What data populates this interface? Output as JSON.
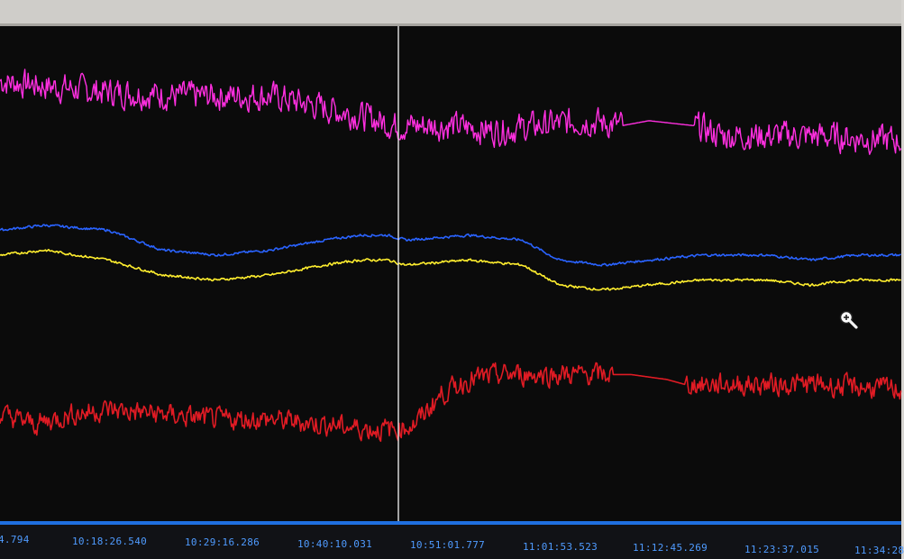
{
  "chart_data": {
    "type": "line",
    "title": "",
    "xlabel": "",
    "ylabel": "",
    "grid": false,
    "legend": "none",
    "x_tick_labels": [
      "4.794",
      "10:18:26.540",
      "10:29:16.286",
      "10:40:10.031",
      "10:51:01.777",
      "11:01:53.523",
      "11:12:45.269",
      "11:23:37.015",
      "11:34:28"
    ],
    "x_range": [
      0,
      100
    ],
    "ylim": [
      0,
      100
    ],
    "series": [
      {
        "color": "#ff2fe0",
        "noise": 4,
        "points": [
          [
            0,
            89
          ],
          [
            10,
            87
          ],
          [
            20,
            86
          ],
          [
            30,
            86
          ],
          [
            35,
            84
          ],
          [
            40,
            82
          ],
          [
            44,
            80
          ],
          [
            46,
            80
          ],
          [
            50,
            80
          ],
          [
            55,
            79
          ],
          [
            60,
            80
          ],
          [
            65,
            81
          ],
          [
            69,
            80
          ],
          [
            72,
            81
          ],
          [
            77,
            80
          ],
          [
            80,
            78
          ],
          [
            90,
            78
          ],
          [
            100,
            77
          ]
        ],
        "flat": [
          [
            69,
            77
          ]
        ]
      },
      {
        "color": "#2a63ff",
        "noise": 0.35,
        "points": [
          [
            0,
            59
          ],
          [
            5,
            60
          ],
          [
            12,
            59
          ],
          [
            18,
            55
          ],
          [
            24,
            54
          ],
          [
            30,
            55
          ],
          [
            36,
            57
          ],
          [
            40,
            58
          ],
          [
            43,
            58
          ],
          [
            45,
            57
          ],
          [
            52,
            58
          ],
          [
            58,
            57
          ],
          [
            62,
            53
          ],
          [
            67,
            52
          ],
          [
            72,
            53
          ],
          [
            78,
            54
          ],
          [
            85,
            54
          ],
          [
            90,
            53
          ],
          [
            95,
            54
          ],
          [
            100,
            54
          ]
        ],
        "flat": []
      },
      {
        "color": "#ffee2e",
        "noise": 0.35,
        "points": [
          [
            0,
            54
          ],
          [
            5,
            55
          ],
          [
            12,
            53
          ],
          [
            18,
            50
          ],
          [
            24,
            49
          ],
          [
            30,
            50
          ],
          [
            36,
            52
          ],
          [
            40,
            53
          ],
          [
            43,
            53
          ],
          [
            45,
            52
          ],
          [
            52,
            53
          ],
          [
            58,
            52
          ],
          [
            62,
            48
          ],
          [
            67,
            47
          ],
          [
            72,
            48
          ],
          [
            78,
            49
          ],
          [
            85,
            49
          ],
          [
            90,
            48
          ],
          [
            95,
            49
          ],
          [
            100,
            49
          ]
        ],
        "flat": []
      },
      {
        "color": "#e01b24",
        "noise": 3,
        "points": [
          [
            0,
            22
          ],
          [
            4,
            20
          ],
          [
            8,
            22
          ],
          [
            12,
            23
          ],
          [
            18,
            22
          ],
          [
            24,
            21
          ],
          [
            30,
            21
          ],
          [
            36,
            20
          ],
          [
            41,
            19
          ],
          [
            44,
            19
          ],
          [
            46,
            20
          ],
          [
            49,
            26
          ],
          [
            52,
            29
          ],
          [
            56,
            30
          ],
          [
            62,
            30
          ],
          [
            66,
            30
          ],
          [
            68,
            30
          ],
          [
            70,
            30
          ],
          [
            74,
            29
          ],
          [
            76,
            28
          ],
          [
            80,
            28
          ],
          [
            90,
            28
          ],
          [
            100,
            27
          ]
        ],
        "flat": [
          [
            68,
            76
          ]
        ]
      }
    ],
    "cursor_x": 44.2
  },
  "icons": {
    "zoom": "zoom-in-magnifier-icon"
  }
}
